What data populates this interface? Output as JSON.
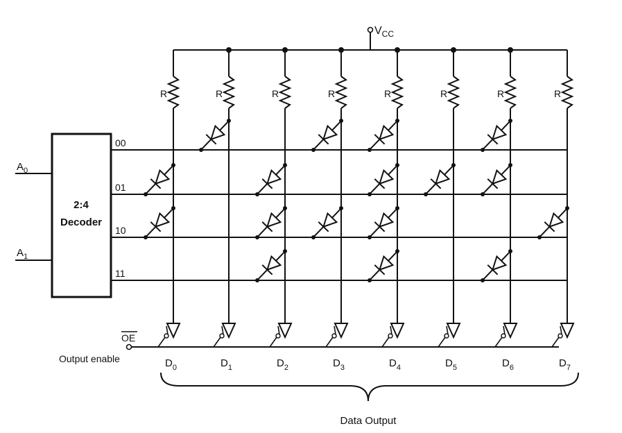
{
  "supply": {
    "label": "V",
    "sub": "CC"
  },
  "decoder": {
    "line1": "2:4",
    "line2": "Decoder"
  },
  "inputs": [
    {
      "label": "A",
      "sub": "0"
    },
    {
      "label": "A",
      "sub": "1"
    }
  ],
  "rows": [
    {
      "code": "00",
      "diodes": [
        1,
        3,
        4,
        6
      ]
    },
    {
      "code": "01",
      "diodes": [
        0,
        2,
        4,
        5,
        6
      ]
    },
    {
      "code": "10",
      "diodes": [
        0,
        2,
        3,
        4,
        7
      ]
    },
    {
      "code": "11",
      "diodes": [
        2,
        4,
        6
      ]
    }
  ],
  "resistor_label": "R",
  "outputs": [
    {
      "label": "D",
      "sub": "0"
    },
    {
      "label": "D",
      "sub": "1"
    },
    {
      "label": "D",
      "sub": "2"
    },
    {
      "label": "D",
      "sub": "3"
    },
    {
      "label": "D",
      "sub": "4"
    },
    {
      "label": "D",
      "sub": "5"
    },
    {
      "label": "D",
      "sub": "6"
    },
    {
      "label": "D",
      "sub": "7"
    }
  ],
  "oe_label": "OE",
  "output_enable_label": "Output enable",
  "data_output_label": "Data Output"
}
